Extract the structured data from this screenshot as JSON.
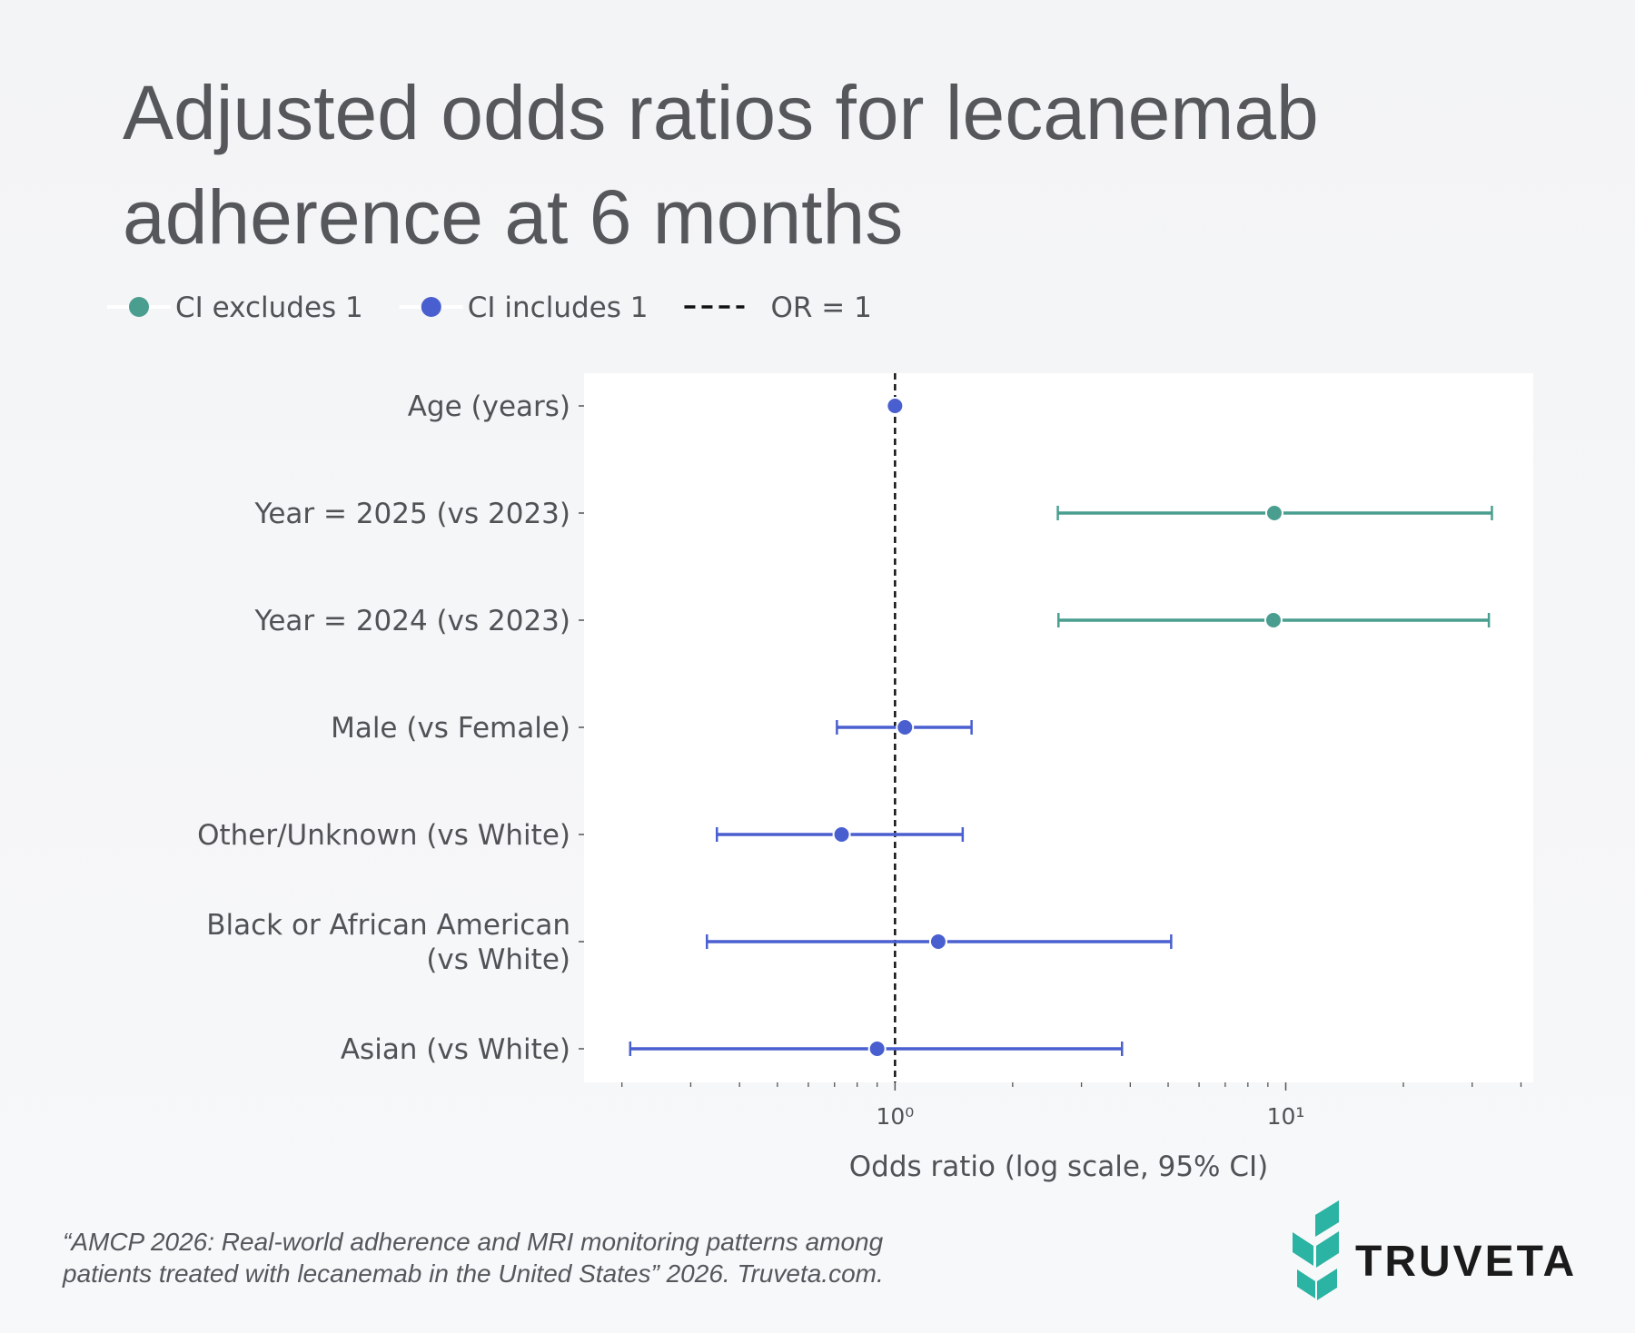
{
  "chart_data": {
    "type": "forest",
    "title": "Adjusted odds ratios for lecanemab adherence at 6 months",
    "title_lines": [
      "Adjusted odds ratios for lecanemab",
      "adherence at 6 months"
    ],
    "categories": [
      "Age (years)",
      "Year = 2025 (vs 2023)",
      "Year = 2024 (vs 2023)",
      "Male (vs Female)",
      "Other/Unknown (vs White)",
      "Black or African American\n(vs White)",
      "Asian (vs White)"
    ],
    "series": [
      {
        "name": "CI excludes 1",
        "color": "#4a9e8f",
        "values": [
          null,
          9.35,
          9.3,
          null,
          null,
          null,
          null
        ],
        "lower": [
          null,
          2.61,
          2.62,
          null,
          null,
          null,
          null
        ],
        "upper": [
          null,
          33.7,
          33.1,
          null,
          null,
          null,
          null
        ]
      },
      {
        "name": "CI includes 1",
        "color": "#4a5fcf",
        "values": [
          1.0,
          null,
          null,
          1.06,
          0.73,
          1.29,
          0.9
        ],
        "lower": [
          0.99,
          null,
          null,
          0.71,
          0.35,
          0.33,
          0.21
        ],
        "upper": [
          1.01,
          null,
          null,
          1.57,
          1.49,
          5.09,
          3.81
        ]
      }
    ],
    "reference_line": {
      "value": 1,
      "label": "OR = 1",
      "color": "#111111"
    },
    "x_label": "Odds ratio (log scale, 95% CI)",
    "log_x": true,
    "xlim": [
      0.16,
      43
    ],
    "xticks": [
      {
        "value": 1,
        "label": "10⁰"
      },
      {
        "value": 10,
        "label": "10¹"
      }
    ],
    "minor_xticks": [
      0.2,
      0.3,
      0.4,
      0.5,
      0.6,
      0.7,
      0.8,
      0.9,
      2,
      3,
      4,
      5,
      6,
      7,
      8,
      9,
      20,
      30,
      40
    ],
    "legend": "top-left"
  },
  "footer": {
    "citation_lines": [
      "“AMCP 2026: Real-world adherence and MRI monitoring patterns among",
      "patients treated with lecanemab in the United States” 2026. Truveta.com."
    ],
    "brand": "TRUVETA"
  }
}
